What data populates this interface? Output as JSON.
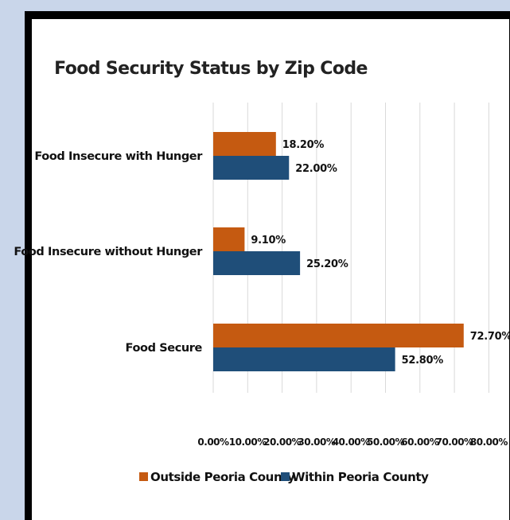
{
  "chart_data": {
    "type": "bar",
    "orientation": "horizontal",
    "title": "Food Security Status by Zip Code",
    "categories": [
      "Food Insecure with Hunger",
      "Food Insecure without Hunger",
      "Food Secure"
    ],
    "series": [
      {
        "name": "Outside Peoria County",
        "color": "#c55a11",
        "values": [
          18.2,
          9.1,
          72.7
        ],
        "labels": [
          "18.20%",
          "9.10%",
          "72.70%"
        ]
      },
      {
        "name": "Within Peoria County",
        "color": "#1f4e79",
        "values": [
          22.0,
          25.2,
          52.8
        ],
        "labels": [
          "22.00%",
          "25.20%",
          "52.80%"
        ]
      }
    ],
    "xlim": [
      0,
      80
    ],
    "ticks": [
      "0.00%",
      "10.00%",
      "20.00%",
      "30.00%",
      "40.00%",
      "50.00%",
      "60.00%",
      "70.00%",
      "80.00%"
    ],
    "grid": true,
    "legend_position": "bottom"
  }
}
